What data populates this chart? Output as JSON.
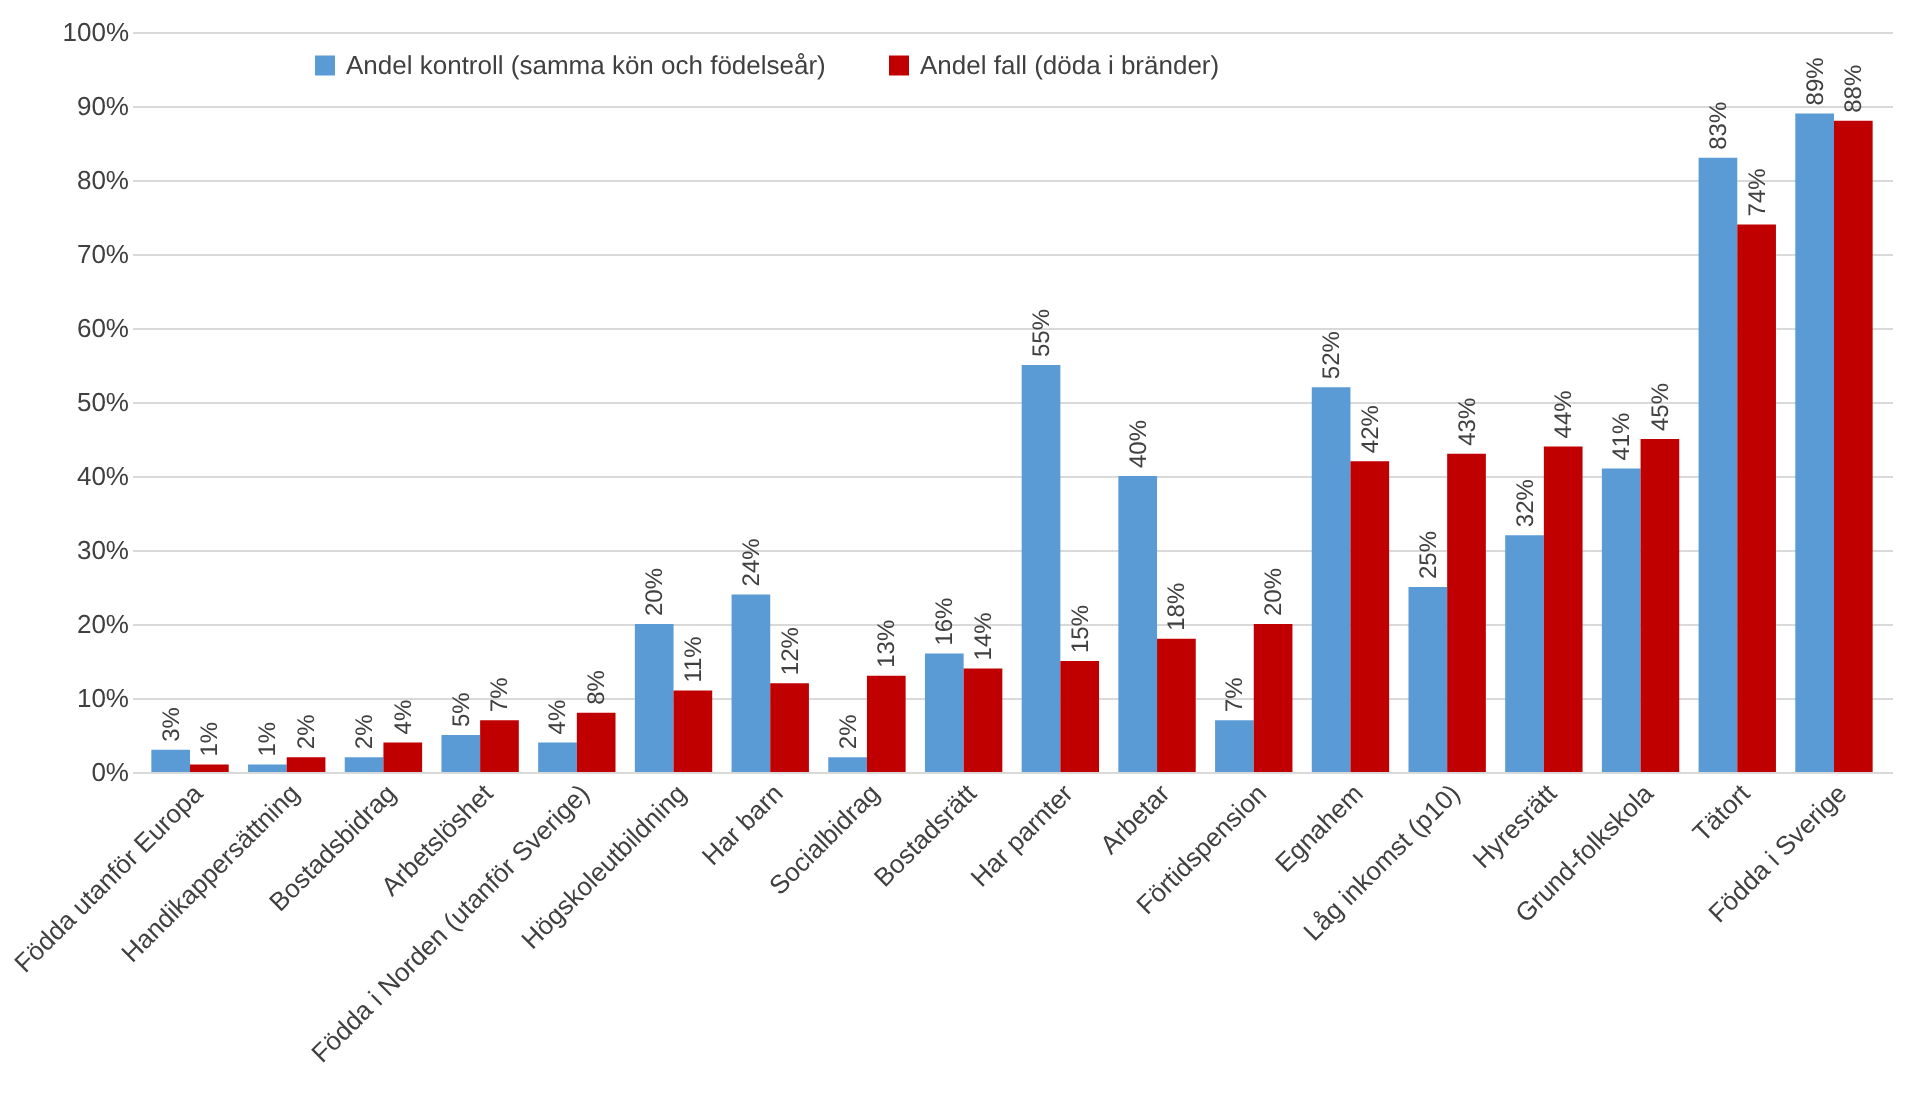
{
  "chart_data": {
    "type": "bar",
    "categories": [
      "Födda utanför Europa",
      "Handikappersättning",
      "Bostadsbidrag",
      "Arbetslöshet",
      "Födda i Norden (utanför Sverige)",
      "Högskoleutbildning",
      "Har barn",
      "Socialbidrag",
      "Bostadsrätt",
      "Har parnter",
      "Arbetar",
      "Förtidspension",
      "Egnahem",
      "Låg inkomst (p10)",
      "Hyresrätt",
      "Grund-folkskola",
      "Tätort",
      "Födda i Sverige"
    ],
    "series": [
      {
        "name": "Andel kontroll (samma kön och födelseår)",
        "color": "#5b9bd5",
        "values": [
          3,
          1,
          2,
          5,
          4,
          20,
          24,
          2,
          16,
          55,
          40,
          7,
          52,
          25,
          32,
          41,
          83,
          89
        ],
        "value_labels": [
          "3%",
          "1%",
          "2%",
          "5%",
          "4%",
          "20%",
          "24%",
          "2%",
          "16%",
          "55%",
          "40%",
          "7%",
          "52%",
          "25%",
          "32%",
          "41%",
          "83%",
          "89%"
        ]
      },
      {
        "name": "Andel fall (döda i bränder)",
        "color": "#c00000",
        "values": [
          1,
          2,
          4,
          7,
          8,
          11,
          12,
          13,
          14,
          15,
          18,
          20,
          42,
          43,
          44,
          45,
          74,
          88
        ],
        "value_labels": [
          "1%",
          "2%",
          "4%",
          "7%",
          "8%",
          "11%",
          "12%",
          "13%",
          "14%",
          "15%",
          "18%",
          "20%",
          "42%",
          "43%",
          "44%",
          "45%",
          "74%",
          "88%"
        ]
      }
    ],
    "ylim": [
      0,
      100
    ],
    "yticks": [
      {
        "value": 0,
        "label": "0%"
      },
      {
        "value": 10,
        "label": "10%"
      },
      {
        "value": 20,
        "label": "20%"
      },
      {
        "value": 30,
        "label": "30%"
      },
      {
        "value": 40,
        "label": "40%"
      },
      {
        "value": 50,
        "label": "50%"
      },
      {
        "value": 60,
        "label": "60%"
      },
      {
        "value": 70,
        "label": "70%"
      },
      {
        "value": 80,
        "label": "80%"
      },
      {
        "value": 90,
        "label": "90%"
      },
      {
        "value": 100,
        "label": "100%"
      }
    ],
    "grid": "y",
    "legend": "top left"
  }
}
